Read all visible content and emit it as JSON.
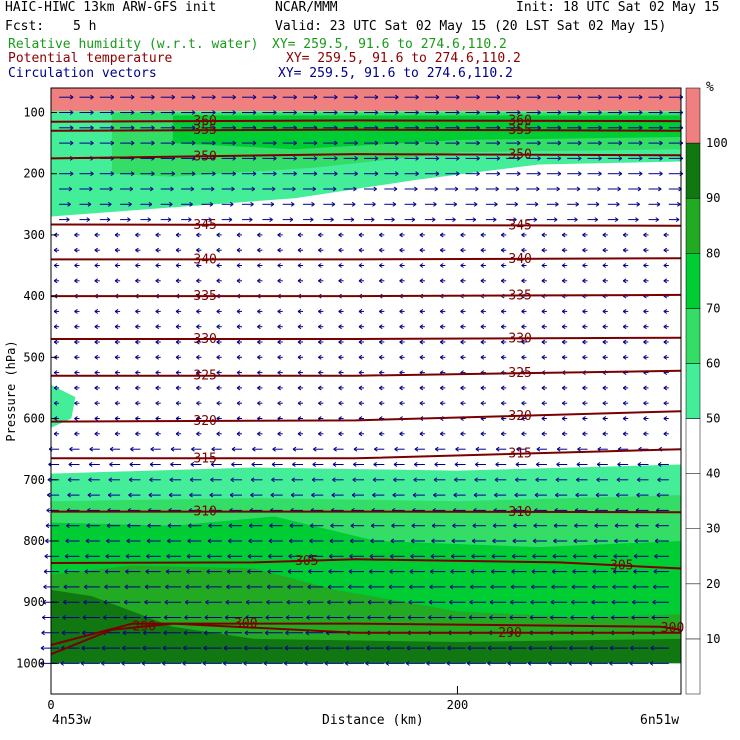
{
  "header": {
    "model": "HAIC-HIWC 13km ARW-GFS init",
    "org": "NCAR/MMM",
    "init": "Init: 18 UTC Sat 02 May 15",
    "fcst_label": "Fcst:",
    "fcst_value": "5 h",
    "valid": "Valid: 23 UTC Sat 02 May 15 (20 LST Sat 02 May 15)"
  },
  "fields": [
    {
      "name": "Relative humidity (w.r.t. water)",
      "xy": "XY= 259.5, 91.6 to 274.6,110.2",
      "color": "#1a9a1a"
    },
    {
      "name": "Potential temperature",
      "xy": "XY= 259.5, 91.6 to 274.6,110.2",
      "color": "#8b0000"
    },
    {
      "name": "Circulation vectors",
      "xy": "XY= 259.5, 91.6 to 274.6,110.2",
      "color": "#00008b"
    }
  ],
  "colorbar": {
    "unit": "%",
    "levels": [
      "10",
      "20",
      "30",
      "40",
      "50",
      "60",
      "70",
      "80",
      "90",
      "100"
    ],
    "colors": [
      "#ffffff",
      "#ffffff",
      "#ffffff",
      "#ffffff",
      "#ffffff",
      "#44ee99",
      "#33dd66",
      "#00cc33",
      "#22aa22",
      "#117711",
      "#f07f7f"
    ]
  },
  "chart_data": {
    "type": "cross-section",
    "xlabel": "Distance (km)",
    "ylabel": "Pressure (hPa)",
    "x_tick_labels": [
      "0",
      "200"
    ],
    "x_ticks": [
      0,
      200
    ],
    "xlim": [
      0,
      310
    ],
    "ylim": [
      1050,
      60
    ],
    "y_tick_labels": [
      "100",
      "200",
      "300",
      "400",
      "500",
      "600",
      "700",
      "800",
      "900",
      "1000"
    ],
    "endpoint_labels": [
      "4n53w",
      "6n51w"
    ],
    "theta_contours": [
      {
        "level": 290,
        "label": "290",
        "p": [
          [
            0,
            985
          ],
          [
            30,
            945
          ],
          [
            60,
            935
          ],
          [
            150,
            950
          ],
          [
            300,
            950
          ],
          [
            310,
            950
          ]
        ]
      },
      {
        "level": 300,
        "label": "300",
        "p": [
          [
            0,
            970
          ],
          [
            40,
            935
          ],
          [
            150,
            935
          ],
          [
            300,
            940
          ],
          [
            310,
            945
          ]
        ]
      },
      {
        "level": 305,
        "label": "305",
        "p": [
          [
            0,
            836
          ],
          [
            100,
            835
          ],
          [
            150,
            830
          ],
          [
            250,
            835
          ],
          [
            310,
            845
          ]
        ]
      },
      {
        "level": 310,
        "label": "310",
        "p": [
          [
            0,
            752
          ],
          [
            150,
            752
          ],
          [
            310,
            753
          ]
        ]
      },
      {
        "level": 315,
        "label": "315",
        "p": [
          [
            0,
            665
          ],
          [
            150,
            665
          ],
          [
            310,
            650
          ]
        ]
      },
      {
        "level": 320,
        "label": "320",
        "p": [
          [
            0,
            605
          ],
          [
            150,
            603
          ],
          [
            310,
            588
          ]
        ]
      },
      {
        "level": 325,
        "label": "325",
        "p": [
          [
            0,
            530
          ],
          [
            150,
            530
          ],
          [
            310,
            522
          ]
        ]
      },
      {
        "level": 330,
        "label": "330",
        "p": [
          [
            0,
            470
          ],
          [
            150,
            470
          ],
          [
            310,
            468
          ]
        ]
      },
      {
        "level": 335,
        "label": "335",
        "p": [
          [
            0,
            400
          ],
          [
            150,
            400
          ],
          [
            310,
            398
          ]
        ]
      },
      {
        "level": 340,
        "label": "340",
        "p": [
          [
            0,
            340
          ],
          [
            150,
            340
          ],
          [
            310,
            338
          ]
        ]
      },
      {
        "level": 345,
        "label": "345",
        "p": [
          [
            0,
            283
          ],
          [
            150,
            284
          ],
          [
            310,
            285
          ]
        ]
      },
      {
        "level": 350,
        "label": "350",
        "p": [
          [
            0,
            175
          ],
          [
            150,
            168
          ],
          [
            310,
            170
          ]
        ]
      },
      {
        "level": 355,
        "label": "355",
        "p": [
          [
            0,
            130
          ],
          [
            150,
            128
          ],
          [
            310,
            130
          ]
        ]
      },
      {
        "level": 360,
        "label": "360",
        "p": [
          [
            0,
            115
          ],
          [
            150,
            113
          ],
          [
            310,
            114
          ]
        ]
      }
    ],
    "rh_regions": [
      {
        "level": ">=100",
        "p_top": 60,
        "p_bottom": 98
      },
      {
        "level": "50-80",
        "p_top": 98,
        "p_bottom": 270
      },
      {
        "level": "50-60",
        "p_top": 540,
        "p_bottom": 610
      },
      {
        "level": "50-100",
        "p_top": 680,
        "p_bottom": 1000
      }
    ],
    "vectors": {
      "upper_direction": "eastward (200-300 hPa)",
      "lower_direction": "westward (below 650 hPa)"
    }
  }
}
